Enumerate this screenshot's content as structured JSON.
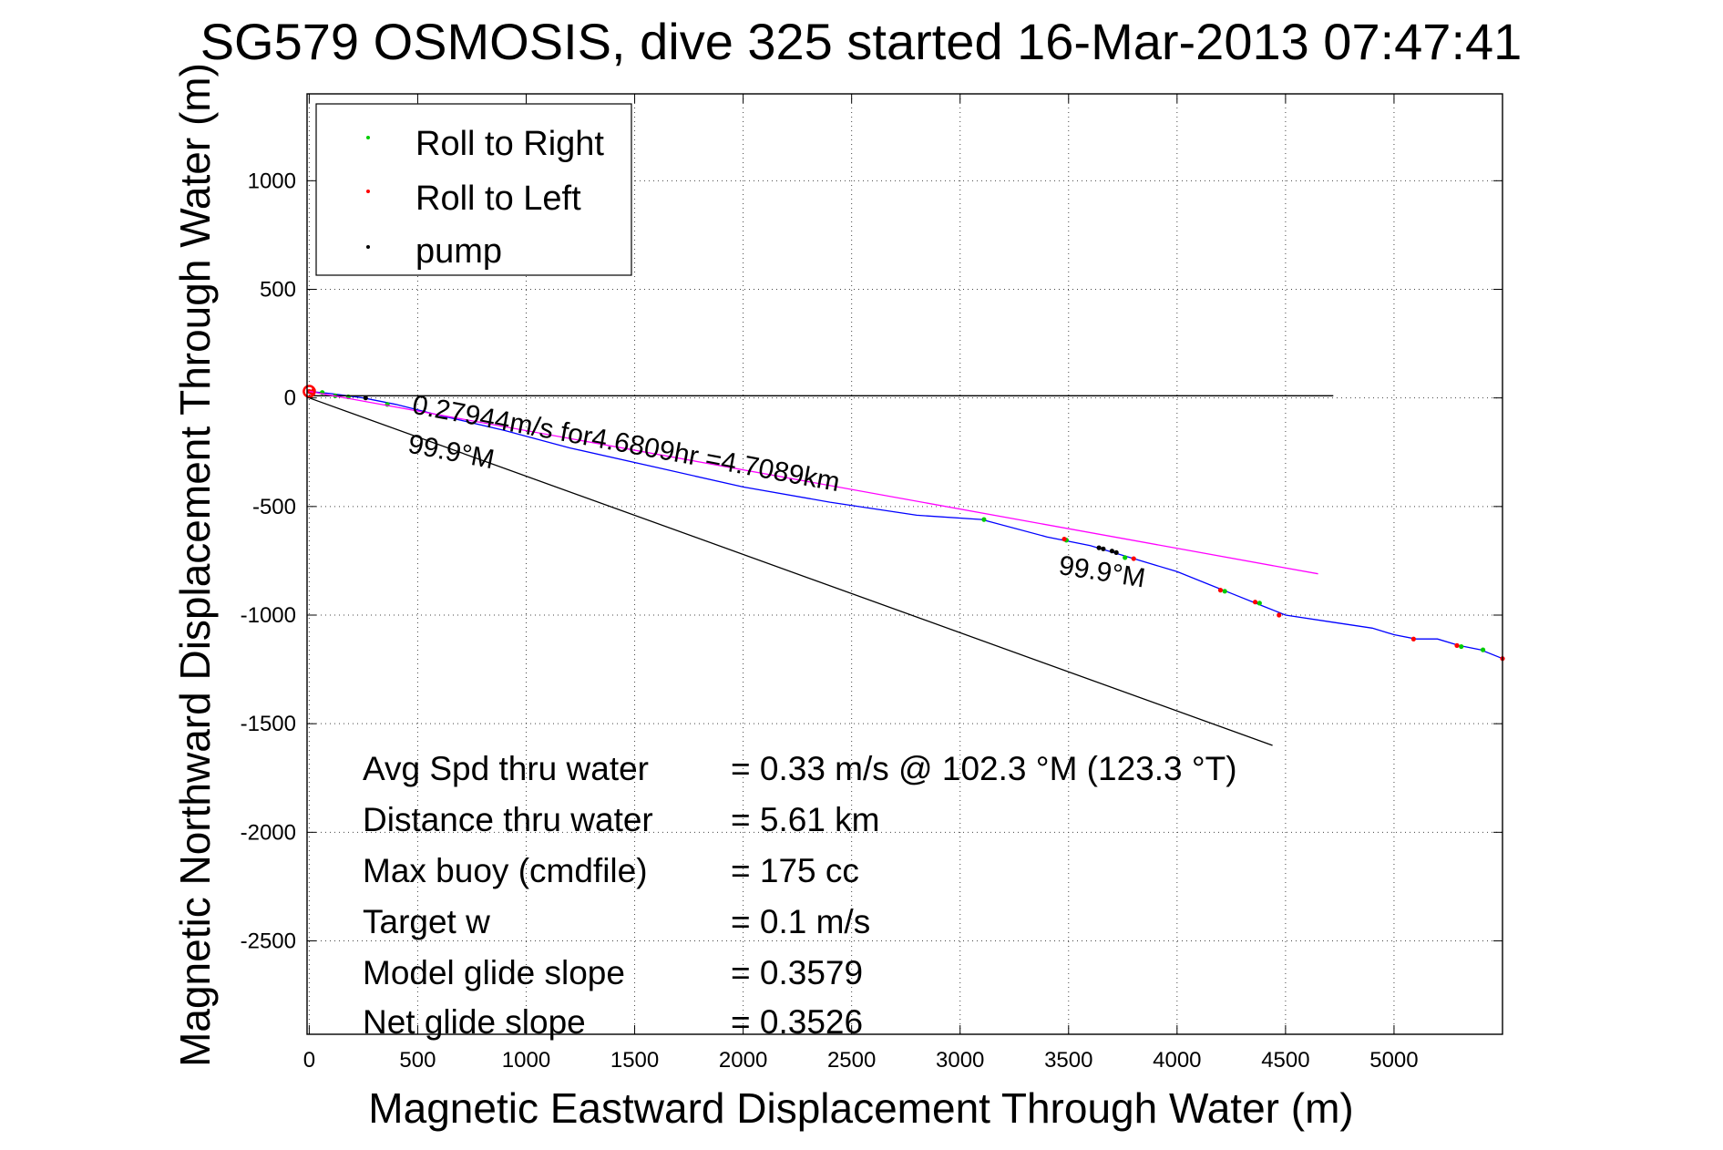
{
  "chart_data": {
    "type": "scatter",
    "title": "SG579 OSMOSIS, dive 325 started 16-Mar-2013 07:47:41",
    "xlabel": "Magnetic Eastward Displacement Through Water (m)",
    "ylabel": "Magnetic Northward Displacement Through Water (m)",
    "xlim": [
      -10,
      5500
    ],
    "ylim": [
      -2930,
      1400
    ],
    "xticks": [
      0,
      500,
      1000,
      1500,
      2000,
      2500,
      3000,
      3500,
      4000,
      4500,
      5000
    ],
    "xtick_labels": [
      "0",
      "500",
      "1000",
      "1500",
      "2000",
      "2500",
      "3000",
      "3500",
      "4000",
      "4500",
      "5000"
    ],
    "yticks": [
      1000,
      500,
      0,
      -500,
      -1000,
      -1500,
      -2000,
      -2500
    ],
    "ytick_labels": [
      "1000",
      "500",
      "0",
      "-500",
      "-1000",
      "-1500",
      "-2000",
      "-2500"
    ],
    "grid": true,
    "legend_position": "top-left",
    "legend": [
      {
        "label": "Roll to Right",
        "color": "#00cc00"
      },
      {
        "label": "Roll to Left",
        "color": "#ff0000"
      },
      {
        "label": "pump",
        "color": "#000000"
      }
    ],
    "series": [
      {
        "name": "track",
        "style": "line",
        "color": "#0000ff",
        "x": [
          0,
          100,
          250,
          400,
          600,
          900,
          1200,
          1600,
          2000,
          2400,
          2800,
          3100,
          3400,
          3600,
          3800,
          4000,
          4150,
          4250,
          4400,
          4500,
          4700,
          4900,
          5000,
          5100,
          5200,
          5300,
          5400,
          5500
        ],
        "y": [
          30,
          20,
          0,
          -30,
          -80,
          -150,
          -230,
          -320,
          -410,
          -480,
          -540,
          -560,
          -640,
          -680,
          -740,
          -800,
          -860,
          -900,
          -960,
          -1000,
          -1030,
          -1060,
          -1090,
          -1110,
          -1110,
          -1140,
          -1160,
          -1200
        ]
      },
      {
        "name": "Roll to Right",
        "style": "markers",
        "color": "#00cc00",
        "x": [
          60,
          120,
          180,
          360,
          3110,
          3490,
          3760,
          4220,
          4380,
          5310,
          5410
        ],
        "y": [
          25,
          10,
          5,
          -30,
          -560,
          -655,
          -735,
          -890,
          -945,
          -1145,
          -1160
        ]
      },
      {
        "name": "Roll to Left",
        "style": "markers",
        "color": "#ff0000",
        "x": [
          0,
          10,
          20,
          3480,
          3800,
          4200,
          4360,
          4470,
          5090,
          5290,
          5500
        ],
        "y": [
          30,
          25,
          35,
          -650,
          -740,
          -885,
          -940,
          -1000,
          -1110,
          -1140,
          -1200
        ]
      },
      {
        "name": "pump",
        "style": "markers",
        "color": "#000000",
        "x": [
          260,
          3640,
          3660,
          3700,
          3720
        ],
        "y": [
          0,
          -690,
          -695,
          -705,
          -712
        ]
      },
      {
        "name": "zero heading line",
        "style": "line",
        "color": "#000000",
        "x": [
          0,
          4720
        ],
        "y": [
          10,
          10
        ]
      },
      {
        "name": "99.9°M heading line",
        "style": "line",
        "color": "#000000",
        "x": [
          0,
          4440
        ],
        "y": [
          0,
          -1600
        ]
      },
      {
        "name": "average track",
        "style": "line",
        "color": "#ff00ff",
        "x": [
          0,
          4650
        ],
        "y": [
          30,
          -810
        ]
      }
    ],
    "annotations": [
      {
        "text": "0.27944m/s for4.6809hr =4.7089km",
        "x": 470,
        "y": -70,
        "angle": 10.4,
        "size": 30
      },
      {
        "text": "99.9°M",
        "x": 450,
        "y": -250,
        "angle": 11,
        "size": 30
      },
      {
        "text": "99.9°M",
        "x": 3450,
        "y": -810,
        "angle": 9,
        "size": 30
      }
    ],
    "stats": [
      {
        "label": "Avg Spd thru water",
        "value": "=  0.33 m/s @ 102.3 °M (123.3 °T)"
      },
      {
        "label": "Distance thru water",
        "value": "=  5.61 km"
      },
      {
        "label": "Max buoy (cmdfile)",
        "value": "= 175 cc"
      },
      {
        "label": "Target w",
        "value": "= 0.1 m/s"
      },
      {
        "label": "Model glide slope",
        "value": "= 0.3579"
      },
      {
        "label": "Net glide slope",
        "value": "= 0.3526"
      }
    ]
  }
}
